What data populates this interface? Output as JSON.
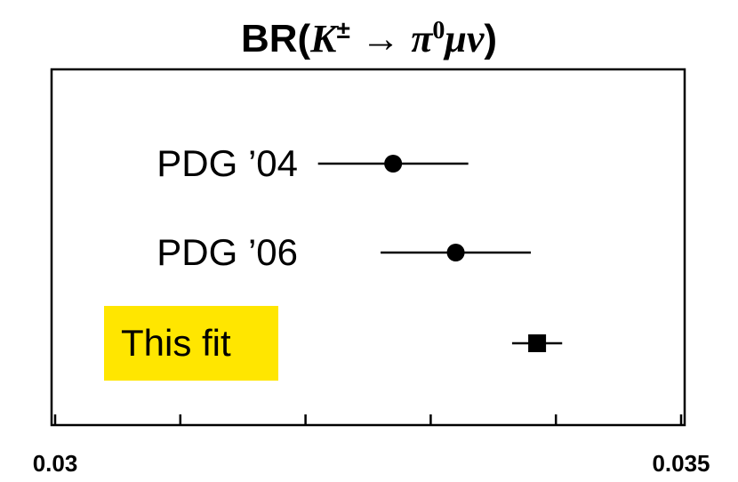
{
  "chart_data": {
    "type": "forest",
    "title_parts": [
      "BR(",
      "K",
      "±",
      " → ",
      "π",
      "0",
      "μν",
      ")"
    ],
    "categories": [
      "PDG ’04",
      "PDG ’06",
      "This fit"
    ],
    "values": [
      0.0327,
      0.0332,
      0.03385
    ],
    "errors": [
      0.0006,
      0.0006,
      0.0002
    ],
    "markers": [
      "circle",
      "circle",
      "square"
    ],
    "color": "#000000",
    "highlight_category": 2,
    "highlight_color": "#ffe600",
    "xlim": [
      0.03,
      0.035
    ],
    "xticks": [
      0.03,
      0.035
    ],
    "xminor_ticks": [
      0.031,
      0.032,
      0.033,
      0.034
    ]
  }
}
